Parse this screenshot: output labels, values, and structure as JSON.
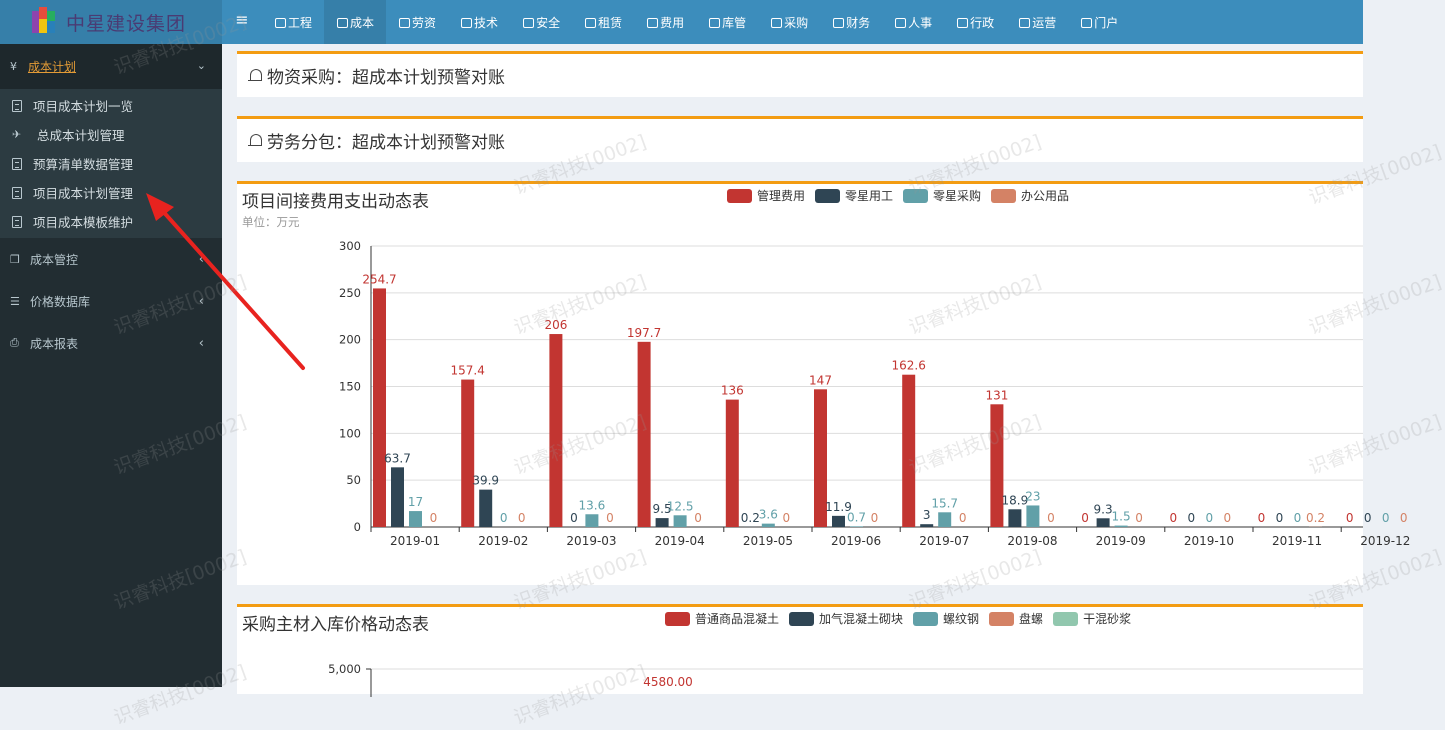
{
  "app": {
    "logo_text": "中星建设集团",
    "menu_icon": "hamburger-icon"
  },
  "top_nav": [
    {
      "label": "工程",
      "icon": "engineering-icon",
      "active": false
    },
    {
      "label": "成本",
      "icon": "scale-icon",
      "active": true
    },
    {
      "label": "劳资",
      "icon": "users-icon",
      "active": false
    },
    {
      "label": "技术",
      "icon": "tech-icon",
      "active": false
    },
    {
      "label": "安全",
      "icon": "safety-icon",
      "active": false
    },
    {
      "label": "租赁",
      "icon": "dashboard-icon",
      "active": false
    },
    {
      "label": "费用",
      "icon": "card-icon",
      "active": false
    },
    {
      "label": "库管",
      "icon": "inventory-icon",
      "active": false
    },
    {
      "label": "采购",
      "icon": "cubes-icon",
      "active": false
    },
    {
      "label": "财务",
      "icon": "diamond-icon",
      "active": false
    },
    {
      "label": "人事",
      "icon": "person-icon",
      "active": false
    },
    {
      "label": "行政",
      "icon": "laptop-icon",
      "active": false
    },
    {
      "label": "运营",
      "icon": "monitor-icon",
      "active": false
    },
    {
      "label": "门户",
      "icon": "home-icon",
      "active": false
    }
  ],
  "sidebar": {
    "open_group": {
      "icon": "yen-icon",
      "icon_glyph": "¥",
      "label": "成本计划"
    },
    "sub_items": [
      {
        "label": "项目成本计划一览",
        "icon": "file-icon"
      },
      {
        "label": "总成本计划管理",
        "icon": "plane-icon"
      },
      {
        "label": "预算清单数据管理",
        "icon": "file-icon"
      },
      {
        "label": "项目成本计划管理",
        "icon": "file-icon"
      },
      {
        "label": "项目成本模板维护",
        "icon": "file-icon"
      }
    ],
    "groups": [
      {
        "label": "成本管控",
        "icon": "cube-icon"
      },
      {
        "label": "价格数据库",
        "icon": "database-icon"
      },
      {
        "label": "成本报表",
        "icon": "print-icon"
      }
    ]
  },
  "alerts": [
    {
      "text": "物资采购：超成本计划预警对账"
    },
    {
      "text": "劳务分包：超成本计划预警对账"
    }
  ],
  "colors": {
    "accent": "#f39c12",
    "topbar": "#3c8dbc",
    "sidebar": "#222d32",
    "series": [
      "#c23531",
      "#2f4554",
      "#61a0a8",
      "#d48265",
      "#91c7ae"
    ]
  },
  "watermark": "识睿科技[0002]",
  "chart_data": [
    {
      "type": "bar",
      "title": "项目间接费用支出动态表",
      "unit_label": "单位：万元",
      "categories": [
        "2019-01",
        "2019-02",
        "2019-03",
        "2019-04",
        "2019-05",
        "2019-06",
        "2019-07",
        "2019-08",
        "2019-09",
        "2019-10",
        "2019-11",
        "2019-12"
      ],
      "series": [
        {
          "name": "管理费用",
          "values": [
            254.7,
            157.4,
            206,
            197.7,
            136,
            147,
            162.6,
            131,
            0,
            0,
            0,
            0
          ]
        },
        {
          "name": "零星用工",
          "values": [
            63.7,
            39.9,
            0,
            9.5,
            0.2,
            11.9,
            3,
            18.9,
            9.3,
            0,
            0,
            0
          ]
        },
        {
          "name": "零星采购",
          "values": [
            17,
            0,
            13.6,
            12.5,
            3.6,
            0.7,
            15.7,
            23,
            1.5,
            0,
            0,
            0
          ]
        },
        {
          "name": "办公用品",
          "values": [
            0,
            0,
            0,
            0,
            0,
            0,
            0,
            0,
            0,
            0,
            0.2,
            0
          ]
        }
      ],
      "yticks": [
        "0",
        "50",
        "100",
        "150",
        "200",
        "250",
        "300"
      ],
      "ylim": [
        0,
        300
      ],
      "legend_position": "top-center",
      "grid": true
    },
    {
      "type": "line",
      "title": "采购主材入库价格动态表",
      "series": [
        {
          "name": "普通商品混凝土"
        },
        {
          "name": "加气混凝土砌块"
        },
        {
          "name": "螺纹钢"
        },
        {
          "name": "盘螺"
        },
        {
          "name": "干混砂浆"
        }
      ],
      "yticks": [
        "5,000"
      ],
      "visible_labels": [
        "4580.00"
      ],
      "legend_position": "top-center",
      "grid": true
    }
  ]
}
